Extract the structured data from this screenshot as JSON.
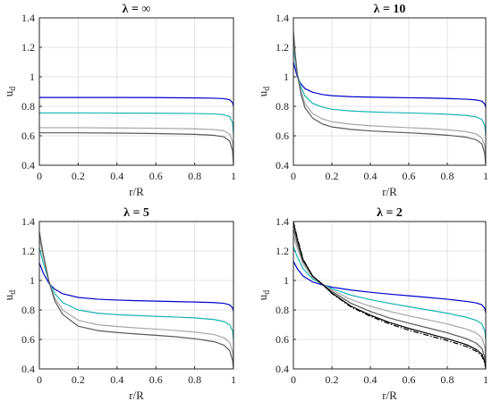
{
  "figure": {
    "background": "#ffffff"
  },
  "chart_data": [
    {
      "type": "line",
      "title": "λ = ∞",
      "xlabel": "r/R",
      "ylabel": "u_d",
      "xlim": [
        0,
        1
      ],
      "ylim": [
        0.4,
        1.4
      ],
      "xticks": [
        "0",
        "0.2",
        "0.4",
        "0.6",
        "0.8",
        "1"
      ],
      "yticks": [
        "0.4",
        "0.6",
        "0.8",
        "1",
        "1.2",
        "1.4"
      ],
      "grid": true,
      "series": [
        {
          "color": "#0000cc",
          "dash": "",
          "x": [
            0,
            0.2,
            0.4,
            0.6,
            0.8,
            0.9,
            0.95,
            0.98,
            0.995,
            1.0
          ],
          "y": [
            0.86,
            0.86,
            0.86,
            0.859,
            0.857,
            0.855,
            0.852,
            0.845,
            0.825,
            0.8
          ]
        },
        {
          "color": "#19b3b3",
          "dash": "",
          "x": [
            0,
            0.2,
            0.4,
            0.6,
            0.8,
            0.9,
            0.95,
            0.98,
            0.995,
            1.0
          ],
          "y": [
            0.755,
            0.755,
            0.754,
            0.753,
            0.751,
            0.748,
            0.743,
            0.73,
            0.69,
            0.61
          ]
        },
        {
          "color": "#a6a6a6",
          "dash": "",
          "x": [
            0,
            0.2,
            0.4,
            0.6,
            0.8,
            0.9,
            0.95,
            0.98,
            0.995,
            1.0
          ],
          "y": [
            0.655,
            0.655,
            0.653,
            0.651,
            0.647,
            0.642,
            0.634,
            0.612,
            0.56,
            0.45
          ]
        },
        {
          "color": "#595959",
          "dash": "",
          "x": [
            0,
            0.2,
            0.4,
            0.6,
            0.8,
            0.9,
            0.95,
            0.98,
            0.995,
            1.0
          ],
          "y": [
            0.62,
            0.62,
            0.618,
            0.615,
            0.61,
            0.603,
            0.593,
            0.565,
            0.5,
            0.4
          ]
        }
      ]
    },
    {
      "type": "line",
      "title": "λ = 10",
      "xlabel": "r/R",
      "ylabel": "u_d",
      "xlim": [
        0,
        1
      ],
      "ylim": [
        0.4,
        1.4
      ],
      "xticks": [
        "0",
        "0.2",
        "0.4",
        "0.6",
        "0.8",
        "1"
      ],
      "yticks": [
        "0.4",
        "0.6",
        "0.8",
        "1",
        "1.2",
        "1.4"
      ],
      "grid": true,
      "series": [
        {
          "color": "#0000cc",
          "dash": "",
          "x": [
            0,
            0.01,
            0.02,
            0.04,
            0.06,
            0.1,
            0.15,
            0.2,
            0.3,
            0.4,
            0.5,
            0.6,
            0.7,
            0.8,
            0.9,
            0.95,
            0.98,
            0.995,
            1.0
          ],
          "y": [
            1.1,
            1.05,
            1.0,
            0.95,
            0.92,
            0.895,
            0.88,
            0.872,
            0.865,
            0.862,
            0.86,
            0.858,
            0.856,
            0.853,
            0.848,
            0.843,
            0.835,
            0.815,
            0.79
          ]
        },
        {
          "color": "#19b3b3",
          "dash": "",
          "x": [
            0,
            0.01,
            0.02,
            0.04,
            0.06,
            0.1,
            0.15,
            0.2,
            0.3,
            0.4,
            0.5,
            0.6,
            0.7,
            0.8,
            0.9,
            0.95,
            0.98,
            0.995,
            1.0
          ],
          "y": [
            1.2,
            1.1,
            1.02,
            0.93,
            0.87,
            0.82,
            0.795,
            0.78,
            0.768,
            0.762,
            0.758,
            0.755,
            0.751,
            0.746,
            0.738,
            0.728,
            0.71,
            0.67,
            0.6
          ]
        },
        {
          "color": "#a6a6a6",
          "dash": "",
          "x": [
            0,
            0.01,
            0.02,
            0.04,
            0.06,
            0.1,
            0.15,
            0.2,
            0.3,
            0.4,
            0.5,
            0.6,
            0.7,
            0.8,
            0.9,
            0.95,
            0.98,
            0.995,
            1.0
          ],
          "y": [
            1.27,
            1.13,
            1.02,
            0.9,
            0.82,
            0.75,
            0.715,
            0.695,
            0.678,
            0.668,
            0.661,
            0.655,
            0.649,
            0.641,
            0.628,
            0.612,
            0.585,
            0.53,
            0.45
          ]
        },
        {
          "color": "#595959",
          "dash": "",
          "x": [
            0,
            0.01,
            0.02,
            0.04,
            0.06,
            0.1,
            0.15,
            0.2,
            0.3,
            0.4,
            0.5,
            0.6,
            0.7,
            0.8,
            0.9,
            0.95,
            0.98,
            0.995,
            1.0
          ],
          "y": [
            1.31,
            1.15,
            1.02,
            0.88,
            0.79,
            0.72,
            0.68,
            0.66,
            0.643,
            0.633,
            0.626,
            0.62,
            0.613,
            0.604,
            0.59,
            0.573,
            0.545,
            0.48,
            0.4
          ]
        }
      ]
    },
    {
      "type": "line",
      "title": "λ = 5",
      "xlabel": "r/R",
      "ylabel": "u_d",
      "xlim": [
        0,
        1
      ],
      "ylim": [
        0.4,
        1.4
      ],
      "xticks": [
        "0",
        "0.2",
        "0.4",
        "0.6",
        "0.8",
        "1"
      ],
      "yticks": [
        "0.4",
        "0.6",
        "0.8",
        "1",
        "1.2",
        "1.4"
      ],
      "grid": true,
      "series": [
        {
          "color": "#0000cc",
          "dash": "",
          "x": [
            0,
            0.02,
            0.05,
            0.08,
            0.12,
            0.2,
            0.3,
            0.4,
            0.5,
            0.6,
            0.7,
            0.8,
            0.9,
            0.95,
            0.98,
            0.995,
            1.0
          ],
          "y": [
            1.12,
            1.05,
            0.98,
            0.94,
            0.91,
            0.885,
            0.873,
            0.867,
            0.863,
            0.86,
            0.857,
            0.854,
            0.85,
            0.845,
            0.835,
            0.815,
            0.79
          ]
        },
        {
          "color": "#19b3b3",
          "dash": "",
          "x": [
            0,
            0.02,
            0.05,
            0.08,
            0.12,
            0.2,
            0.3,
            0.4,
            0.5,
            0.6,
            0.7,
            0.8,
            0.9,
            0.95,
            0.98,
            0.995,
            1.0
          ],
          "y": [
            1.22,
            1.12,
            0.99,
            0.91,
            0.85,
            0.8,
            0.778,
            0.768,
            0.762,
            0.757,
            0.752,
            0.746,
            0.735,
            0.722,
            0.7,
            0.66,
            0.6
          ]
        },
        {
          "color": "#a6a6a6",
          "dash": "",
          "x": [
            0,
            0.02,
            0.05,
            0.08,
            0.12,
            0.2,
            0.3,
            0.4,
            0.5,
            0.6,
            0.7,
            0.8,
            0.9,
            0.95,
            0.98,
            0.995,
            1.0
          ],
          "y": [
            1.29,
            1.16,
            0.99,
            0.88,
            0.8,
            0.73,
            0.7,
            0.688,
            0.678,
            0.67,
            0.661,
            0.65,
            0.633,
            0.612,
            0.58,
            0.52,
            0.45
          ]
        },
        {
          "color": "#595959",
          "dash": "",
          "x": [
            0,
            0.02,
            0.05,
            0.08,
            0.12,
            0.2,
            0.3,
            0.4,
            0.5,
            0.6,
            0.7,
            0.8,
            0.9,
            0.95,
            0.98,
            0.995,
            1.0
          ],
          "y": [
            1.33,
            1.18,
            0.99,
            0.86,
            0.77,
            0.69,
            0.66,
            0.647,
            0.637,
            0.628,
            0.618,
            0.605,
            0.585,
            0.562,
            0.525,
            0.46,
            0.4
          ]
        }
      ]
    },
    {
      "type": "line",
      "title": "λ = 2",
      "xlabel": "r/R",
      "ylabel": "u_d",
      "xlim": [
        0,
        1
      ],
      "ylim": [
        0.4,
        1.4
      ],
      "xticks": [
        "0",
        "0.2",
        "0.4",
        "0.6",
        "0.8",
        "1"
      ],
      "yticks": [
        "0.4",
        "0.6",
        "0.8",
        "1",
        "1.2",
        "1.4"
      ],
      "grid": true,
      "series": [
        {
          "color": "#0000cc",
          "dash": "",
          "x": [
            0,
            0.02,
            0.05,
            0.1,
            0.15,
            0.2,
            0.3,
            0.4,
            0.5,
            0.6,
            0.7,
            0.8,
            0.9,
            0.95,
            0.98,
            0.995,
            1.0
          ],
          "y": [
            1.13,
            1.08,
            1.03,
            0.99,
            0.97,
            0.955,
            0.935,
            0.92,
            0.907,
            0.896,
            0.885,
            0.873,
            0.858,
            0.848,
            0.835,
            0.81,
            0.78
          ]
        },
        {
          "color": "#19b3b3",
          "dash": "",
          "x": [
            0,
            0.02,
            0.05,
            0.1,
            0.15,
            0.2,
            0.3,
            0.4,
            0.5,
            0.6,
            0.7,
            0.8,
            0.9,
            0.95,
            0.98,
            0.995,
            1.0
          ],
          "y": [
            1.23,
            1.16,
            1.08,
            1.01,
            0.975,
            0.945,
            0.9,
            0.87,
            0.845,
            0.822,
            0.8,
            0.778,
            0.75,
            0.73,
            0.705,
            0.66,
            0.6
          ]
        },
        {
          "color": "#a6a6a6",
          "dash": "",
          "x": [
            0,
            0.02,
            0.05,
            0.1,
            0.15,
            0.2,
            0.3,
            0.4,
            0.5,
            0.6,
            0.7,
            0.8,
            0.9,
            0.95,
            0.98,
            0.995,
            1.0
          ],
          "y": [
            1.3,
            1.22,
            1.11,
            1.02,
            0.975,
            0.935,
            0.87,
            0.825,
            0.79,
            0.76,
            0.733,
            0.705,
            0.67,
            0.645,
            0.61,
            0.55,
            0.47
          ]
        },
        {
          "color": "#595959",
          "dash": "",
          "x": [
            0,
            0.02,
            0.05,
            0.1,
            0.15,
            0.2,
            0.3,
            0.4,
            0.5,
            0.6,
            0.7,
            0.8,
            0.9,
            0.95,
            0.98,
            0.995,
            1.0
          ],
          "y": [
            1.35,
            1.25,
            1.13,
            1.03,
            0.975,
            0.925,
            0.845,
            0.79,
            0.745,
            0.71,
            0.678,
            0.645,
            0.605,
            0.575,
            0.54,
            0.48,
            0.42
          ]
        },
        {
          "color": "#000000",
          "dash": "",
          "x": [
            0,
            0.02,
            0.05,
            0.1,
            0.15,
            0.2,
            0.3,
            0.4,
            0.5,
            0.6,
            0.7,
            0.8,
            0.9,
            0.95,
            0.98,
            0.995,
            1.0
          ],
          "y": [
            1.39,
            1.28,
            1.14,
            1.03,
            0.975,
            0.915,
            0.825,
            0.765,
            0.715,
            0.675,
            0.64,
            0.605,
            0.565,
            0.532,
            0.5,
            0.45,
            0.4
          ]
        },
        {
          "color": "#000000",
          "dash": "6,2,1.5,2",
          "x": [
            0,
            0.02,
            0.05,
            0.1,
            0.15,
            0.2,
            0.3,
            0.4,
            0.5,
            0.6,
            0.7,
            0.8,
            0.9,
            0.95,
            0.98,
            0.995,
            1.0
          ],
          "y": [
            1.4,
            1.29,
            1.145,
            1.03,
            0.975,
            0.912,
            0.82,
            0.757,
            0.705,
            0.663,
            0.627,
            0.592,
            0.552,
            0.52,
            0.488,
            0.44,
            0.4
          ]
        }
      ]
    }
  ]
}
